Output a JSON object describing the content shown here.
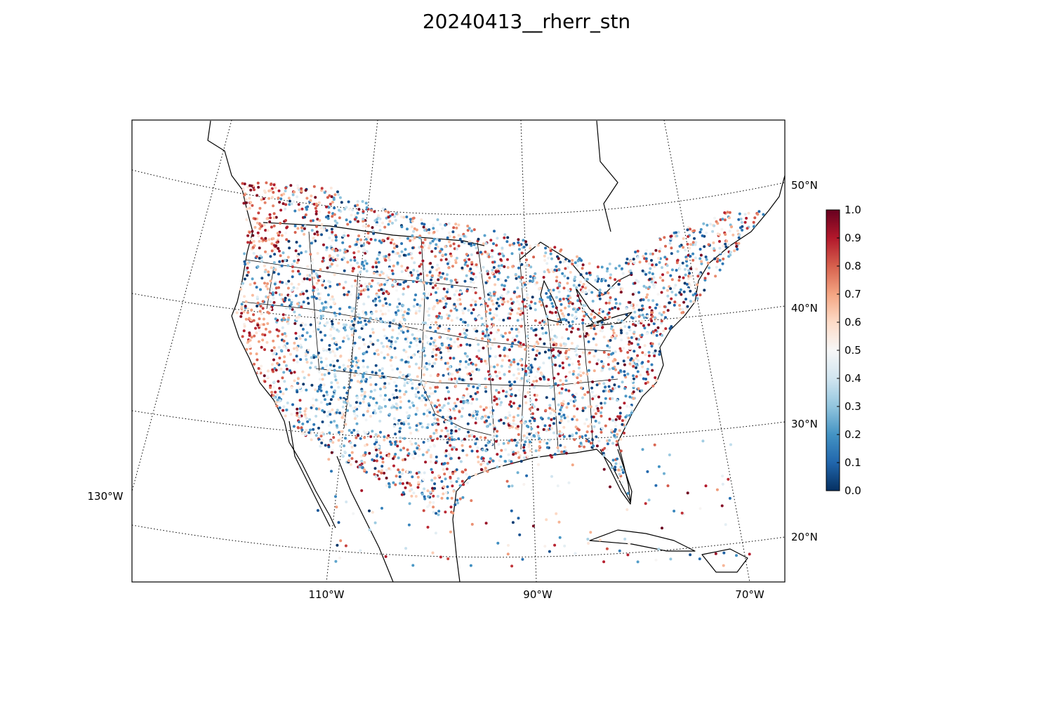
{
  "title": "20240413__rherr_stn",
  "map": {
    "lon_labels": [
      "130°W",
      "110°W",
      "90°W",
      "70°W"
    ],
    "lat_labels": [
      "50°N",
      "40°N",
      "30°N",
      "20°N"
    ]
  },
  "colorbar": {
    "ticks": [
      "1.0",
      "0.9",
      "0.8",
      "0.7",
      "0.6",
      "0.5",
      "0.4",
      "0.3",
      "0.2",
      "0.1",
      "0.0"
    ],
    "colormap": "RdBu_r",
    "colors": [
      "#053061",
      "#2166ac",
      "#4393c3",
      "#92c5de",
      "#d1e5f0",
      "#f7f7f7",
      "#fddbc7",
      "#f4a582",
      "#d6604d",
      "#b2182b",
      "#67001f"
    ],
    "range": [
      0.0,
      1.0
    ]
  },
  "chart_data": {
    "type": "scatter",
    "title": "20240413__rherr_stn",
    "xlabel": "",
    "ylabel": "",
    "x_ticks": [
      "130°W",
      "110°W",
      "90°W",
      "70°W"
    ],
    "y_ticks": [
      "50°N",
      "40°N",
      "30°N",
      "20°N"
    ],
    "color_range": [
      0.0,
      1.0
    ],
    "grid": true
  }
}
